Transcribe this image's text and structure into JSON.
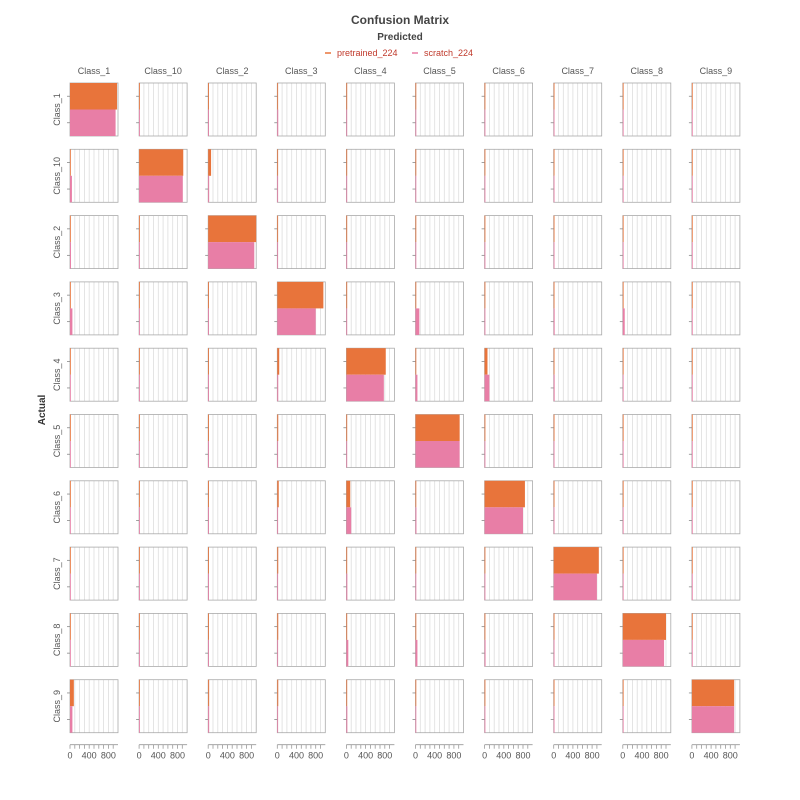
{
  "chart_data": {
    "type": "bar",
    "title": "Confusion Matrix",
    "subtitle": "Predicted",
    "ylabel": "Actual",
    "xlim": [
      0,
      1000
    ],
    "x_ticks": [
      0,
      400,
      800
    ],
    "predicted_classes": [
      "Class_1",
      "Class_10",
      "Class_2",
      "Class_3",
      "Class_4",
      "Class_5",
      "Class_6",
      "Class_7",
      "Class_8",
      "Class_9"
    ],
    "actual_classes": [
      "Class_1",
      "Class_10",
      "Class_2",
      "Class_3",
      "Class_4",
      "Class_5",
      "Class_6",
      "Class_7",
      "Class_8",
      "Class_9"
    ],
    "legend_position": "top-center",
    "series": [
      {
        "name": "pretrained_224",
        "color": "#e8743b",
        "values": [
          [
            980,
            5,
            10,
            5,
            0,
            0,
            0,
            0,
            0,
            0
          ],
          [
            15,
            920,
            60,
            0,
            0,
            0,
            0,
            0,
            0,
            5
          ],
          [
            10,
            5,
            1000,
            5,
            0,
            0,
            0,
            0,
            0,
            0
          ],
          [
            10,
            5,
            10,
            960,
            10,
            10,
            5,
            10,
            10,
            0
          ],
          [
            5,
            0,
            0,
            40,
            820,
            10,
            60,
            10,
            5,
            0
          ],
          [
            5,
            0,
            0,
            20,
            10,
            920,
            10,
            5,
            5,
            0
          ],
          [
            5,
            0,
            0,
            30,
            80,
            10,
            840,
            5,
            5,
            0
          ],
          [
            5,
            0,
            0,
            20,
            10,
            5,
            10,
            940,
            5,
            0
          ],
          [
            5,
            0,
            0,
            20,
            10,
            5,
            10,
            10,
            900,
            0
          ],
          [
            80,
            5,
            20,
            20,
            10,
            5,
            10,
            10,
            10,
            880
          ]
        ]
      },
      {
        "name": "scratch_224",
        "color": "#e87ea6",
        "values": [
          [
            950,
            5,
            10,
            20,
            10,
            5,
            5,
            5,
            5,
            5
          ],
          [
            40,
            910,
            20,
            0,
            0,
            0,
            0,
            0,
            0,
            10
          ],
          [
            20,
            10,
            960,
            10,
            0,
            0,
            0,
            0,
            0,
            0
          ],
          [
            50,
            5,
            10,
            800,
            10,
            80,
            15,
            20,
            40,
            0
          ],
          [
            5,
            0,
            0,
            20,
            780,
            40,
            100,
            20,
            10,
            0
          ],
          [
            5,
            0,
            0,
            10,
            10,
            920,
            10,
            5,
            5,
            0
          ],
          [
            5,
            0,
            0,
            10,
            100,
            20,
            800,
            5,
            10,
            0
          ],
          [
            5,
            0,
            0,
            10,
            20,
            5,
            10,
            900,
            10,
            0
          ],
          [
            5,
            0,
            0,
            10,
            40,
            40,
            20,
            10,
            860,
            0
          ],
          [
            50,
            5,
            20,
            10,
            20,
            5,
            10,
            10,
            10,
            880
          ]
        ]
      }
    ]
  }
}
